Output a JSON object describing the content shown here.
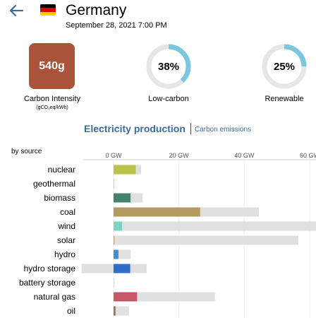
{
  "header": {
    "zone_name": "Germany",
    "datetime": "September 28, 2021 7:00 PM",
    "flag_colors": [
      "#000000",
      "#dd0000",
      "#ffce00"
    ]
  },
  "carbon_intensity": {
    "value": "540g",
    "label": "Carbon Intensity",
    "unit": "(gCO₂eq/kWh)",
    "color": "#a8533a"
  },
  "low_carbon": {
    "percent_label": "38%",
    "fraction": 0.38,
    "label": "Low-carbon"
  },
  "renewable": {
    "percent_label": "25%",
    "fraction": 0.25,
    "label": "Renewable"
  },
  "ring_color": "#7cc7de",
  "tabs": {
    "active": "Electricity production",
    "inactive": "Carbon emissions"
  },
  "by_source_label": "by source",
  "chart_data": {
    "type": "bar",
    "xlim": [
      -10,
      65
    ],
    "ticks": [
      {
        "value": 0,
        "label": "0 GW"
      },
      {
        "value": 20,
        "label": "20 GW"
      },
      {
        "value": 40,
        "label": "40 GW"
      },
      {
        "value": 60,
        "label": "60 GW"
      }
    ],
    "categories": [
      "nuclear",
      "geothermal",
      "biomass",
      "coal",
      "wind",
      "solar",
      "hydro",
      "hydro storage",
      "battery storage",
      "natural gas",
      "oil"
    ],
    "production": [
      6.8,
      0.1,
      5.2,
      26.5,
      2.6,
      0.3,
      1.5,
      5.1,
      0,
      7.2,
      0.6
    ],
    "capacity_min": [
      0,
      0,
      0,
      0,
      0,
      0,
      0,
      -9.8,
      0,
      0,
      0
    ],
    "capacity_max": [
      8.4,
      0.1,
      8.9,
      44.5,
      64.5,
      56.5,
      5.2,
      10.1,
      0.3,
      31.0,
      4.7
    ],
    "colors": [
      "#b8c24a",
      "#ffe600",
      "#41836f",
      "#b49a5e",
      "#7fd3c3",
      "#f7a800",
      "#3f8fd2",
      "#2f6ec8",
      "#b0b0b0",
      "#c85568",
      "#86775f"
    ],
    "capacity_color": "#e0e0e0"
  }
}
